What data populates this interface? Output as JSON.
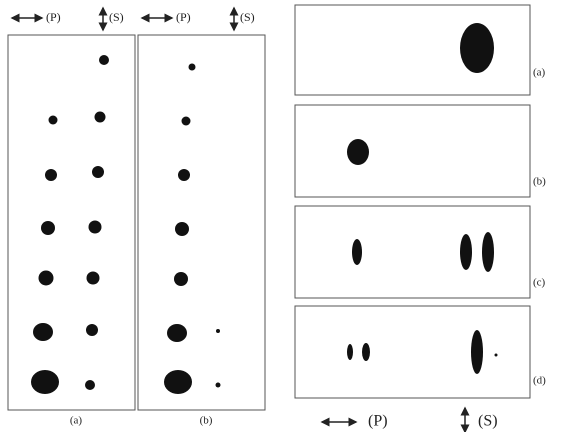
{
  "left_panels": [
    {
      "label": "(a)",
      "header": [
        "(P)",
        "(S)"
      ]
    },
    {
      "label": "(b)",
      "header": [
        "(P)",
        "(S)"
      ]
    }
  ],
  "right_panels": [
    {
      "label": "(a)"
    },
    {
      "label": "(b)"
    },
    {
      "label": "(c)"
    },
    {
      "label": "(d)"
    }
  ],
  "legend": [
    "(P)",
    "(S)"
  ]
}
